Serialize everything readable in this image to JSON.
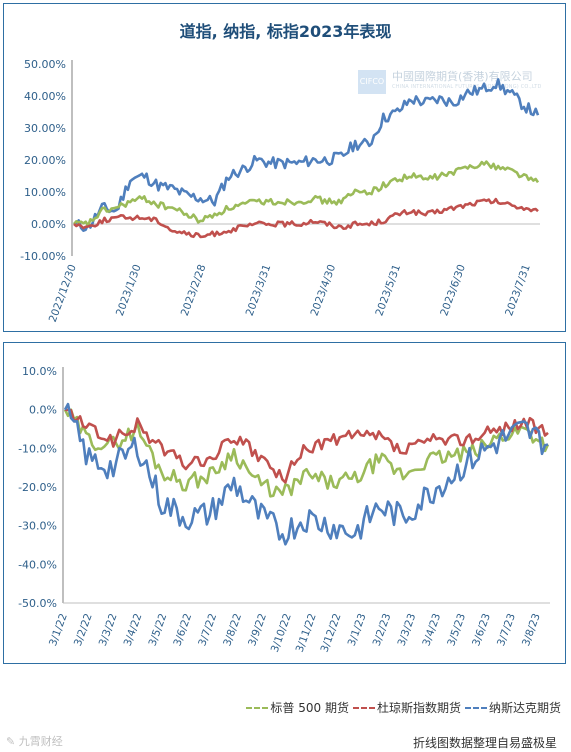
{
  "chart_data": [
    {
      "type": "line",
      "title": "道指, 纳指, 标指2023年表现",
      "x_tick_labels": [
        "2022/12/30",
        "2023/1/30",
        "2023/2/28",
        "2023/3/31",
        "2023/4/30",
        "2023/5/31",
        "2023/6/30",
        "2023/7/31"
      ],
      "y_tick_labels": [
        "50.00%",
        "40.00%",
        "30.00%",
        "20.00%",
        "10.00%",
        "0.00%",
        "-10.00%"
      ],
      "ylim": [
        -10,
        50
      ],
      "x_dates": [
        "2022/12/30",
        "2023/1/6",
        "2023/1/13",
        "2023/1/20",
        "2023/1/27",
        "2023/2/3",
        "2023/2/10",
        "2023/2/17",
        "2023/2/24",
        "2023/3/3",
        "2023/3/10",
        "2023/3/17",
        "2023/3/24",
        "2023/3/31",
        "2023/4/7",
        "2023/4/14",
        "2023/4/21",
        "2023/4/28",
        "2023/5/5",
        "2023/5/12",
        "2023/5/19",
        "2023/5/26",
        "2023/6/2",
        "2023/6/9",
        "2023/6/16",
        "2023/6/23",
        "2023/6/30",
        "2023/7/7",
        "2023/7/14",
        "2023/7/21",
        "2023/7/28",
        "2023/8/4",
        "2023/8/11",
        "2023/8/18"
      ],
      "series": [
        {
          "color": "#4f7fbd",
          "values": [
            0,
            -1,
            5,
            4,
            14,
            15,
            12,
            11,
            9,
            8,
            7,
            15,
            17,
            20,
            19,
            19,
            19,
            20,
            20,
            21,
            25,
            25,
            33,
            35,
            39,
            38,
            39,
            38,
            41,
            42,
            44,
            41,
            37,
            34
          ]
        },
        {
          "color": "#9bbb59",
          "values": [
            0,
            0,
            4,
            5,
            7,
            8,
            6,
            5,
            3,
            1,
            3,
            5,
            6,
            7,
            7,
            7,
            7,
            8,
            7,
            7,
            10,
            10,
            12,
            14,
            15,
            14,
            15,
            16,
            18,
            19,
            18,
            17,
            15,
            13
          ]
        },
        {
          "color": "#c0504d",
          "values": [
            0,
            -1,
            1,
            2,
            2,
            2,
            1,
            -2,
            -3,
            -4,
            -3,
            -2,
            -1,
            0,
            0,
            0,
            0,
            1,
            0,
            -1,
            0,
            0,
            1,
            3,
            4,
            3,
            4,
            5,
            6,
            7,
            7,
            6,
            5,
            4
          ]
        }
      ]
    },
    {
      "type": "line",
      "x_tick_labels": [
        "3/1/22",
        "3/2/22",
        "3/3/22",
        "3/4/22",
        "3/5/22",
        "3/6/22",
        "3/7/22",
        "3/8/22",
        "3/9/22",
        "3/10/22",
        "3/11/22",
        "3/12/22",
        "3/1/23",
        "3/2/23",
        "3/3/23",
        "3/4/23",
        "3/5/23",
        "3/6/23",
        "3/7/23",
        "3/8/23"
      ],
      "y_tick_labels": [
        "10.0%",
        "0.0%",
        "-10.0%",
        "-20.0%",
        "-30.0%",
        "-40.0%",
        "-50.0%"
      ],
      "ylim": [
        -50,
        10
      ],
      "x_dates": [
        "3/1/22",
        "3/2/22",
        "3/3/22",
        "3/4/22",
        "3/5/22",
        "3/6/22",
        "3/7/22",
        "3/8/22",
        "3/9/22",
        "3/10/22",
        "3/11/22",
        "3/12/22",
        "3/1/23",
        "3/2/23",
        "3/3/23",
        "3/4/23",
        "3/5/23",
        "3/6/23",
        "3/7/23",
        "3/8/23",
        "3/9/23"
      ],
      "series": [
        {
          "name": "标普 500 期货",
          "color": "#9bbb59",
          "values": [
            0,
            -8,
            -9,
            -5,
            -16,
            -19,
            -17,
            -11,
            -19,
            -22,
            -17,
            -19,
            -18,
            -13,
            -17,
            -13,
            -12,
            -11,
            -7,
            -5,
            -9
          ]
        },
        {
          "name": "杜琼斯指数期货",
          "color": "#c0504d",
          "values": [
            0,
            -5,
            -8,
            -4,
            -10,
            -14,
            -13,
            -7,
            -12,
            -18,
            -10,
            -8,
            -7,
            -7,
            -11,
            -8,
            -8,
            -7,
            -5,
            -3,
            -6
          ]
        },
        {
          "name": "纳斯达克期货",
          "color": "#4f7fbd",
          "values": [
            0,
            -13,
            -15,
            -9,
            -24,
            -28,
            -27,
            -19,
            -27,
            -32,
            -28,
            -30,
            -32,
            -25,
            -28,
            -22,
            -17,
            -12,
            -8,
            -5,
            -9
          ]
        }
      ]
    }
  ],
  "watermark": {
    "cn": "中國國際期貨(香港)有限公司",
    "en": "CHINA INTERNATIONAL FUTURES (HONG KONG) CO.,LTD",
    "box": "CIFCO"
  },
  "source": "折线图数据整理自易盛极星",
  "corner_logo": "✎ 九霄财经"
}
